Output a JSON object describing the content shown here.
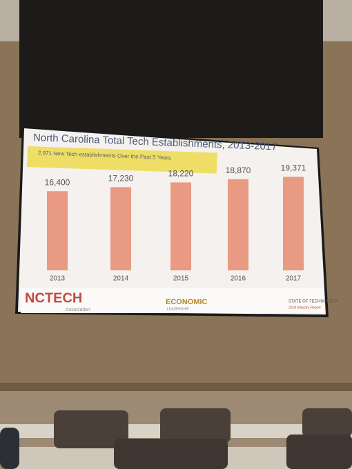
{
  "chart_data": {
    "type": "bar",
    "title": "North Carolina Total Tech Establishments, 2013-2017",
    "subtitle": "2,971 New Tech establishments Over the Past 5 Years",
    "categories": [
      "2013",
      "2014",
      "2015",
      "2016",
      "2017"
    ],
    "values": [
      16400,
      17230,
      18220,
      18870,
      19371
    ],
    "value_labels": [
      "16,400",
      "17,230",
      "18,220",
      "18,870",
      "19,371"
    ],
    "color": "#e99a82",
    "ylim": [
      0,
      20000
    ]
  },
  "footer": {
    "logo_left": "NCTECH",
    "logo_left_sub": "Association",
    "logo_center": "ECONOMIC",
    "logo_center_sub": "LEADERSHIP",
    "logo_right": "STATE OF TECHNOLOGY",
    "logo_right_sub": "2018 Industry Report"
  }
}
